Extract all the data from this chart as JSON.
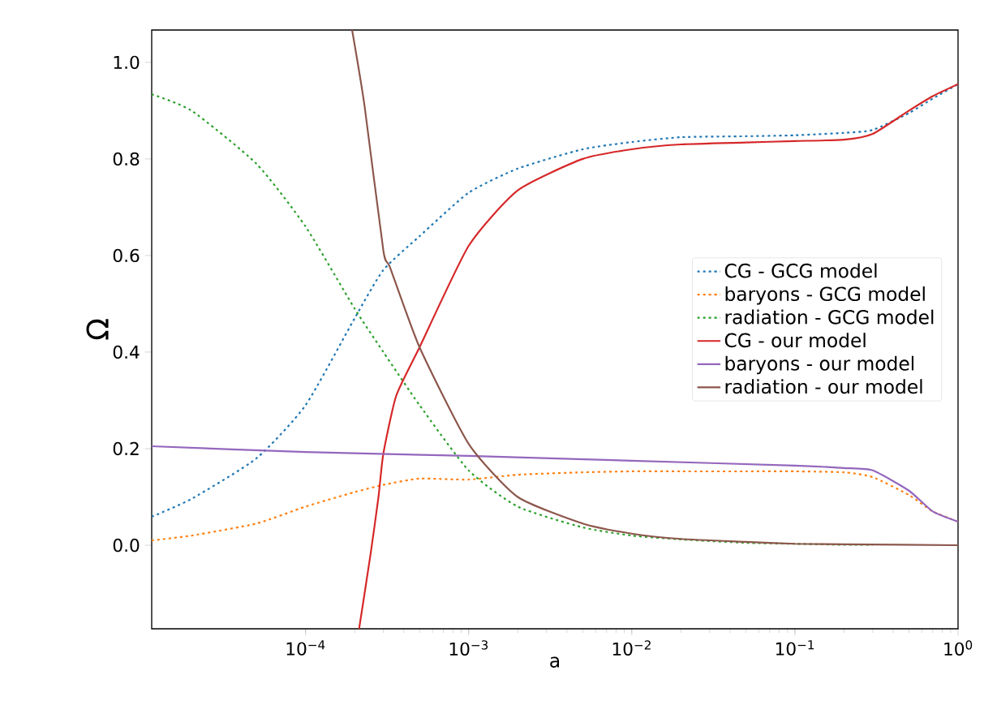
{
  "chart_data": {
    "type": "line",
    "xlabel": "a",
    "ylabel": "Ω",
    "log": "x",
    "legend": "right",
    "grid": false,
    "xlim": [
      1.14e-05,
      1
    ],
    "ylim": [
      -0.173,
      1.067
    ],
    "xticks": [
      {
        "value": 0.0001,
        "label": "10$^{−4}$"
      },
      {
        "value": 0.001,
        "label": "10$^{−3}$"
      },
      {
        "value": 0.01,
        "label": "10$^{−2}$"
      },
      {
        "value": 0.1,
        "label": "10$^{−1}$"
      },
      {
        "value": 1,
        "label": "10$^{0}$"
      }
    ],
    "yticks": [
      {
        "value": 0,
        "label": "0.0"
      },
      {
        "value": 0.2,
        "label": "0.2"
      },
      {
        "value": 0.4,
        "label": "0.4"
      },
      {
        "value": 0.6,
        "label": "0.6"
      },
      {
        "value": 0.8,
        "label": "0.8"
      },
      {
        "value": 1,
        "label": "1.0"
      }
    ],
    "x": [
      1.14e-05,
      2e-05,
      5e-05,
      0.0001,
      0.0002,
      0.0003,
      0.0005,
      0.001,
      0.002,
      0.005,
      0.01,
      0.02,
      0.05,
      0.1,
      0.2,
      0.3,
      0.5,
      0.7,
      1
    ],
    "series": [
      {
        "name": "CG - GCG model",
        "color": "#1f77b4",
        "line_style": "dotted",
        "values": [
          0.059,
          0.096,
          0.18,
          0.29,
          0.47,
          0.57,
          0.64,
          0.73,
          0.78,
          0.82,
          0.835,
          0.845,
          0.847,
          0.849,
          0.854,
          0.86,
          0.895,
          0.925,
          0.955
        ]
      },
      {
        "name": "baryons - GCG model",
        "color": "#ff7f0e",
        "line_style": "dotted",
        "values": [
          0.01,
          0.02,
          0.045,
          0.08,
          0.11,
          0.125,
          0.138,
          0.136,
          0.146,
          0.151,
          0.153,
          0.153,
          0.153,
          0.153,
          0.151,
          0.141,
          0.104,
          0.07,
          0.049
        ]
      },
      {
        "name": "radiation - GCG model",
        "color": "#2ca02c",
        "line_style": "dotted",
        "values": [
          0.934,
          0.9,
          0.79,
          0.66,
          0.49,
          0.4,
          0.29,
          0.155,
          0.08,
          0.037,
          0.02,
          0.012,
          0.005,
          0.003,
          0.001,
          0.001,
          null,
          null,
          null
        ]
      },
      {
        "name": "CG - our model",
        "color": "#d62728",
        "line_style": "solid",
        "x": [
          0.000213,
          0.00025,
          0.00028,
          0.0003,
          0.00036,
          0.0005,
          0.001,
          0.002,
          0.005,
          0.01,
          0.02,
          0.05,
          0.1,
          0.2,
          0.3,
          0.5,
          0.7,
          1
        ],
        "values": [
          -0.173,
          -0.02,
          0.1,
          0.19,
          0.31,
          0.41,
          0.62,
          0.735,
          0.8,
          0.82,
          0.83,
          0.834,
          0.837,
          0.84,
          0.852,
          0.9,
          0.93,
          0.955
        ]
      },
      {
        "name": "baryons - our model",
        "color": "#9467bd",
        "line_style": "solid",
        "x": [
          1.14e-05,
          0.0001,
          0.001,
          0.01,
          0.1,
          0.2,
          0.3,
          0.5,
          0.7,
          1
        ],
        "values": [
          0.205,
          0.193,
          0.185,
          0.175,
          0.165,
          0.16,
          0.155,
          0.113,
          0.07,
          0.049
        ]
      },
      {
        "name": "radiation - our model",
        "color": "#8c564b",
        "line_style": "solid",
        "x": [
          0.000193,
          0.00023,
          0.0003,
          0.00033,
          0.0005,
          0.001,
          0.002,
          0.005,
          0.01,
          0.02,
          0.05,
          0.1,
          0.2,
          1
        ],
        "values": [
          1.067,
          0.91,
          0.61,
          0.575,
          0.41,
          0.21,
          0.1,
          0.045,
          0.024,
          0.013,
          0.007,
          0.003,
          0.002,
          0
        ]
      }
    ]
  }
}
